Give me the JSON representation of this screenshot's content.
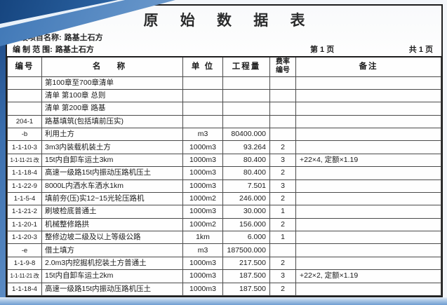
{
  "title": "原  始  数  据  表",
  "info": {
    "project_label": "建设项目名称:",
    "project_value": "路基土石方",
    "scope_label": "编 制 范 围:",
    "scope_value": "路基土石方",
    "page_current": "第 1 页",
    "page_total": "共 1 页"
  },
  "table": {
    "headers": {
      "code": "编号",
      "name": "名    称",
      "unit": "单  位",
      "quantity": "工程量",
      "rate": "费率\n编号",
      "note": "备注"
    },
    "rows": [
      [
        "",
        "第100章至700章清单",
        "",
        "",
        "",
        ""
      ],
      [
        "",
        "清单 第100章  总则",
        "",
        "",
        "",
        ""
      ],
      [
        "",
        "清单 第200章  路基",
        "",
        "",
        "",
        ""
      ],
      [
        "204-1",
        "路基填筑(包括填前压实)",
        "",
        "",
        "",
        ""
      ],
      [
        "-b",
        "利用土方",
        "m3",
        "80400.000",
        "",
        ""
      ],
      [
        "1-1-10-3",
        "3m3内装载机装土方",
        "1000m3",
        "93.264",
        "2",
        ""
      ],
      [
        "1-1-11-21 改",
        "15t内自卸车运土3km",
        "1000m3",
        "80.400",
        "3",
        "+22×4, 定额×1.19"
      ],
      [
        "1-1-18-4",
        "高速一级路15t内振动压路机压土",
        "1000m3",
        "80.400",
        "2",
        ""
      ],
      [
        "1-1-22-9",
        "8000L内洒水车洒水1km",
        "1000m3",
        "7.501",
        "3",
        ""
      ],
      [
        "1-1-5-4",
        "填前夯(压)实12~15光轮压路机",
        "1000m2",
        "246.000",
        "2",
        ""
      ],
      [
        "1-1-21-2",
        "刷坡检底普通土",
        "1000m3",
        "30.000",
        "1",
        ""
      ],
      [
        "1-1-20-1",
        "机械整修路拱",
        "1000m2",
        "156.000",
        "2",
        ""
      ],
      [
        "1-1-20-3",
        "整修边坡二级及以上等级公路",
        "1km",
        "6.000",
        "1",
        ""
      ],
      [
        "-e",
        "借土填方",
        "m3",
        "187500.000",
        "",
        ""
      ],
      [
        "1-1-9-8",
        "2.0m3内挖掘机挖装土方普通土",
        "1000m3",
        "217.500",
        "2",
        ""
      ],
      [
        "1-1-11-21 改",
        "15t内自卸车运土2km",
        "1000m3",
        "187.500",
        "3",
        "+22×2, 定额×1.19"
      ],
      [
        "1-1-18-4",
        "高速一级路15t内振动压路机压土",
        "1000m3",
        "187.500",
        "2",
        ""
      ]
    ]
  },
  "colors": {
    "frame_blue": "#3f77b6",
    "frame_dark_blue": "#16457f",
    "bottom_bar_blue": "#6f9dd1",
    "page_background": "#fefefe",
    "border_black": "#1e1e1e",
    "text": "#1a1a1a"
  }
}
